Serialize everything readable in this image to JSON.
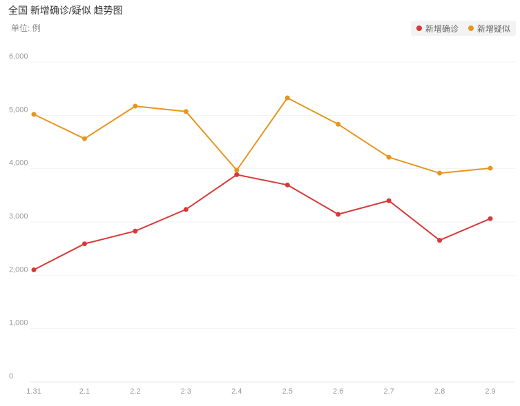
{
  "header": {
    "title": "全国 新增确诊/疑似 趋势图",
    "unit": "单位: 例"
  },
  "legend": [
    {
      "label": "新增确诊",
      "color": "#d93838"
    },
    {
      "label": "新增疑似",
      "color": "#e6951e"
    }
  ],
  "chart_data": {
    "type": "line",
    "x": [
      "1.31",
      "2.1",
      "2.2",
      "2.3",
      "2.4",
      "2.5",
      "2.6",
      "2.7",
      "2.8",
      "2.9"
    ],
    "ylim": [
      0,
      6000
    ],
    "yticks": [
      0,
      1000,
      2000,
      3000,
      4000,
      5000,
      6000
    ],
    "ytick_labels": [
      "0",
      "1,000",
      "2,000",
      "3,000",
      "4,000",
      "5,000",
      "6,000"
    ],
    "grid": true,
    "legend_position": "top-right",
    "series": [
      {
        "name": "新增确诊",
        "color": "#d93838",
        "values": [
          2102,
          2590,
          2829,
          3235,
          3887,
          3694,
          3143,
          3399,
          2656,
          3062
        ]
      },
      {
        "name": "新增疑似",
        "color": "#e6951e",
        "values": [
          5019,
          4562,
          5173,
          5072,
          3971,
          5328,
          4833,
          4214,
          3916,
          4008
        ]
      }
    ]
  }
}
